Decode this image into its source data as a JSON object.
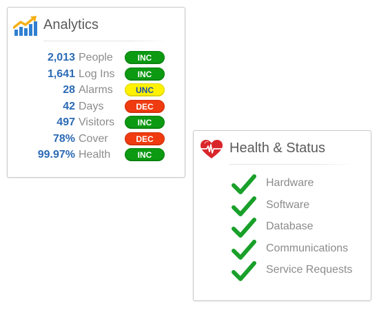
{
  "analytics": {
    "title": "Analytics",
    "icon": "trending-up-chart-icon",
    "rows": [
      {
        "value": "2,013",
        "label": "People",
        "status": "INC"
      },
      {
        "value": "1,641",
        "label": "Log Ins",
        "status": "INC"
      },
      {
        "value": "28",
        "label": "Alarms",
        "status": "UNC"
      },
      {
        "value": "42",
        "label": "Days",
        "status": "DEC"
      },
      {
        "value": "497",
        "label": "Visitors",
        "status": "INC"
      },
      {
        "value": "78%",
        "label": "Cover",
        "status": "DEC"
      },
      {
        "value": "99.97%",
        "label": "Health",
        "status": "INC"
      }
    ]
  },
  "health": {
    "title": "Health & Status",
    "icon": "heartbeat-heart-icon",
    "items": [
      {
        "label": "Hardware",
        "icon": "check-icon"
      },
      {
        "label": "Software",
        "icon": "check-icon"
      },
      {
        "label": "Database",
        "icon": "check-icon"
      },
      {
        "label": "Communications",
        "icon": "check-icon"
      },
      {
        "label": "Service Requests",
        "icon": "check-icon"
      }
    ]
  },
  "colors": {
    "value_blue": "#2a6ab5",
    "inc_green": "#0c9a12",
    "unc_yellow": "#fff200",
    "dec_red": "#f03b10",
    "check_green": "#19a02a",
    "heart_red": "#d9262b"
  }
}
